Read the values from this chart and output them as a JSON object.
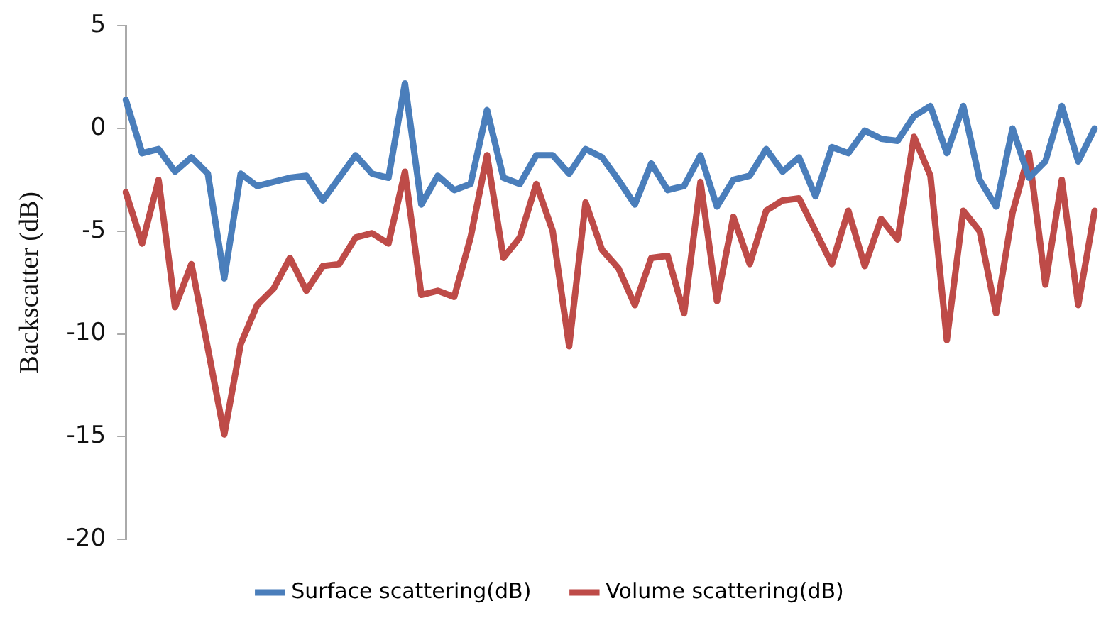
{
  "chart_data": {
    "type": "line",
    "ylabel": "Backscatter (dB)",
    "categories": [
      null,
      null,
      null,
      null,
      null,
      null,
      null,
      null,
      null,
      null,
      null,
      null,
      null,
      null,
      null,
      null,
      null,
      null,
      null,
      null,
      null,
      null,
      null,
      null,
      null,
      null,
      null,
      null,
      null,
      null,
      null,
      null,
      null,
      null,
      null,
      null,
      null,
      null,
      null,
      null,
      null,
      null,
      null,
      null,
      null,
      null,
      null,
      null,
      null,
      null,
      null,
      null,
      null,
      null,
      null,
      null,
      null,
      null,
      null,
      null
    ],
    "series": [
      {
        "name": "Surface scattering(dB)",
        "color": "#4a7ebb",
        "values": [
          1.4,
          -1.2,
          -1.0,
          -2.1,
          -1.4,
          -2.2,
          -7.3,
          -2.2,
          -2.8,
          -2.6,
          -2.4,
          -2.3,
          -3.5,
          -2.4,
          -1.3,
          -2.2,
          -2.4,
          2.2,
          -3.7,
          -2.3,
          -3.0,
          -2.7,
          0.9,
          -2.4,
          -2.7,
          -1.3,
          -1.3,
          -2.2,
          -1.0,
          -1.4,
          -2.5,
          -3.7,
          -1.7,
          -3.0,
          -2.8,
          -1.3,
          -3.8,
          -2.5,
          -2.3,
          -1.0,
          -2.1,
          -1.4,
          -3.3,
          -0.9,
          -1.2,
          -0.1,
          -0.5,
          -0.6,
          0.6,
          1.1,
          -1.2,
          1.1,
          -2.5,
          -3.8,
          0.0,
          -2.4,
          -1.6,
          1.1,
          -1.6,
          0.0
        ]
      },
      {
        "name": "Volume scattering(dB)",
        "color": "#be4b48",
        "values": [
          -3.1,
          -5.6,
          -2.5,
          -8.7,
          -6.6,
          -10.7,
          -14.9,
          -10.5,
          -8.6,
          -7.8,
          -6.3,
          -7.9,
          -6.7,
          -6.6,
          -5.3,
          -5.1,
          -5.6,
          -2.1,
          -8.1,
          -7.9,
          -8.2,
          -5.3,
          -1.3,
          -6.3,
          -5.3,
          -2.7,
          -5.0,
          -10.6,
          -3.6,
          -5.9,
          -6.8,
          -8.6,
          -6.3,
          -6.2,
          -9.0,
          -2.6,
          -8.4,
          -4.3,
          -6.6,
          -4.0,
          -3.5,
          -3.4,
          -5.0,
          -6.6,
          -4.0,
          -6.7,
          -4.4,
          -5.4,
          -0.4,
          -2.3,
          -10.3,
          -4.0,
          -5.0,
          -9.0,
          -4.1,
          -1.2,
          -7.6,
          -2.5,
          -8.6,
          -4.0
        ]
      }
    ],
    "ylim": [
      -20,
      5
    ],
    "yticks": [
      -20,
      -15,
      -10,
      -5,
      0,
      5
    ],
    "grid": false,
    "legend": "bottom",
    "marker": "none",
    "line_style": "solid",
    "tick_labels": "y"
  }
}
